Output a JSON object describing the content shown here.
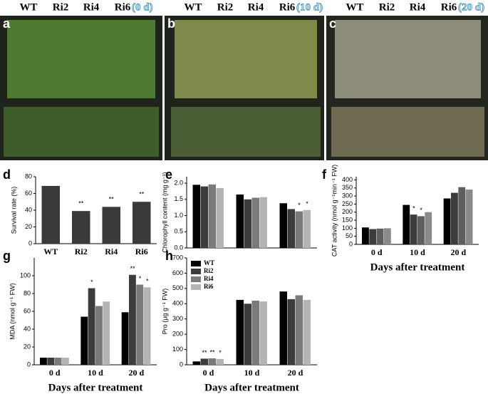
{
  "photos": [
    {
      "letter": "a",
      "genotypes": [
        "WT",
        "Ri2",
        "Ri4",
        "Ri6"
      ],
      "time": "(0 d)"
    },
    {
      "letter": "b",
      "genotypes": [
        "WT",
        "Ri2",
        "Ri4",
        "Ri6"
      ],
      "time": "(10 d)"
    },
    {
      "letter": "c",
      "genotypes": [
        "WT",
        "Ri2",
        "Ri4",
        "Ri6"
      ],
      "time": "(20 d)"
    }
  ],
  "chart_data": [
    {
      "type": "bar",
      "letter": "d",
      "ylabel": "Survival rate (%)",
      "categories": [
        "WT",
        "Ri2",
        "Ri4",
        "Ri6"
      ],
      "values": [
        69,
        39,
        44,
        50
      ],
      "color": "#3a3a3a",
      "annotations": [
        null,
        "**",
        "**",
        "**"
      ],
      "ylim": [
        0,
        80
      ],
      "yticks": [
        0,
        20,
        40,
        60,
        80
      ]
    },
    {
      "type": "grouped-bar",
      "letter": "e",
      "ylabel": "Chlorophyll content (mg g⁻¹)",
      "categories": [
        null,
        null,
        null
      ],
      "series": [
        {
          "name": "WT",
          "color": "#000000",
          "values": [
            1.95,
            1.65,
            1.38
          ],
          "annotations": [
            null,
            null,
            null
          ]
        },
        {
          "name": "Ri2",
          "color": "#3c3c3c",
          "values": [
            1.9,
            1.5,
            1.2
          ],
          "annotations": [
            null,
            null,
            null
          ]
        },
        {
          "name": "Ri4",
          "color": "#7a7a7a",
          "values": [
            1.96,
            1.55,
            1.13
          ],
          "annotations": [
            null,
            null,
            "*"
          ]
        },
        {
          "name": "Ri6",
          "color": "#b4b4b4",
          "values": [
            1.85,
            1.57,
            1.17
          ],
          "annotations": [
            null,
            null,
            "*"
          ]
        }
      ],
      "ylim": [
        0,
        2.2
      ],
      "yticks": [
        {
          "value": 0,
          "label": "0.0"
        },
        {
          "value": 0.5,
          "label": "0.5"
        },
        {
          "value": 1,
          "label": "1.0"
        },
        {
          "value": 1.5,
          "label": "1.5"
        },
        {
          "value": 2,
          "label": "2.0"
        }
      ]
    },
    {
      "type": "grouped-bar",
      "letter": "f",
      "ylabel": "CAT activity (nmol g⁻¹min⁻¹ FW)",
      "xlabel": "Days after treatment",
      "categories": [
        "0 d",
        "10 d",
        "20 d"
      ],
      "series": [
        {
          "name": "WT",
          "color": "#000000",
          "values": [
            105,
            245,
            285
          ],
          "annotations": [
            null,
            null,
            null
          ]
        },
        {
          "name": "Ri2",
          "color": "#3c3c3c",
          "values": [
            95,
            185,
            320
          ],
          "annotations": [
            null,
            "*",
            null
          ]
        },
        {
          "name": "Ri4",
          "color": "#5e5e5e",
          "values": [
            98,
            175,
            355
          ],
          "annotations": [
            null,
            "*",
            null
          ]
        },
        {
          "name": "Ri6",
          "color": "#8a8a8a",
          "values": [
            100,
            200,
            340
          ],
          "annotations": [
            null,
            null,
            null
          ]
        }
      ],
      "ylim": [
        0,
        420
      ],
      "yticks": [
        0,
        50,
        100,
        150,
        200,
        250,
        300,
        350,
        400
      ]
    },
    {
      "type": "grouped-bar",
      "letter": "g",
      "ylabel": "MDA (nmol g⁻¹ FW)",
      "xlabel": "Days after treatment",
      "categories": [
        "0 d",
        "10 d",
        "20 d"
      ],
      "series": [
        {
          "name": "WT",
          "color": "#000000",
          "values": [
            8,
            54,
            59
          ],
          "annotations": [
            null,
            null,
            null
          ]
        },
        {
          "name": "Ri2",
          "color": "#3c3c3c",
          "values": [
            8,
            86,
            101
          ],
          "annotations": [
            null,
            "*",
            "**"
          ]
        },
        {
          "name": "Ri4",
          "color": "#7a7a7a",
          "values": [
            8,
            66,
            90
          ],
          "annotations": [
            null,
            null,
            "*"
          ]
        },
        {
          "name": "Ri6",
          "color": "#b4b4b4",
          "values": [
            8,
            71,
            87
          ],
          "annotations": [
            null,
            null,
            "*"
          ]
        }
      ],
      "ylim": [
        0,
        120
      ],
      "yticks": [
        0,
        20,
        40,
        60,
        80,
        100
      ]
    },
    {
      "type": "grouped-bar",
      "letter": "h",
      "ylabel": "Pro (μg g⁻¹ FW)",
      "xlabel": "Days after treatment",
      "categories": [
        "0 d",
        "10 d",
        "20 d"
      ],
      "legend": "upper left",
      "series": [
        {
          "name": "WT",
          "color": "#000000",
          "values": [
            22,
            425,
            480
          ],
          "annotations": [
            null,
            null,
            null
          ]
        },
        {
          "name": "Ri2",
          "color": "#3c3c3c",
          "values": [
            40,
            400,
            430
          ],
          "annotations": [
            "**",
            null,
            null
          ]
        },
        {
          "name": "Ri4",
          "color": "#7a7a7a",
          "values": [
            42,
            420,
            455
          ],
          "annotations": [
            "**",
            null,
            null
          ]
        },
        {
          "name": "Ri6",
          "color": "#b4b4b4",
          "values": [
            38,
            415,
            425
          ],
          "annotations": [
            "*",
            null,
            null
          ]
        }
      ],
      "ylim": [
        0,
        700
      ],
      "yticks": [
        0,
        100,
        200,
        300,
        400,
        500,
        600,
        700
      ]
    }
  ]
}
